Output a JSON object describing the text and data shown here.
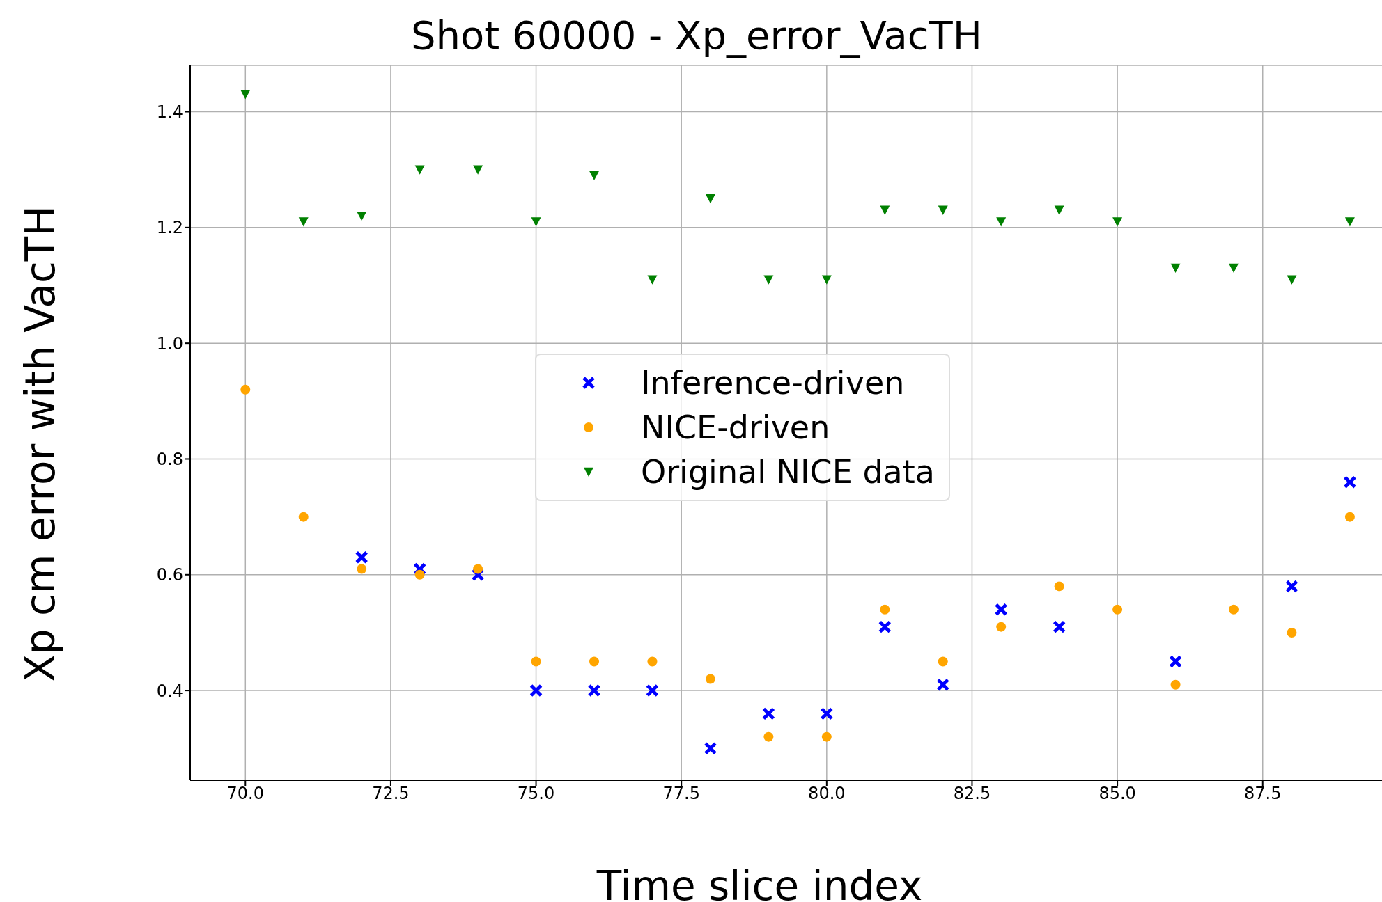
{
  "chart_data": {
    "type": "scatter",
    "title": "Shot 60000 - Xp_error_VacTH",
    "xlabel": "Time slice index",
    "ylabel": "Xp cm error with VacTH",
    "x": [
      70,
      71,
      72,
      73,
      74,
      75,
      76,
      77,
      78,
      79,
      80,
      81,
      82,
      83,
      84,
      85,
      86,
      87,
      88,
      89
    ],
    "series": [
      {
        "name": "Inference-driven",
        "color": "#0000ff",
        "marker": "cross",
        "values": [
          null,
          null,
          0.63,
          0.61,
          0.6,
          0.4,
          0.4,
          0.4,
          0.3,
          0.36,
          0.36,
          0.51,
          0.41,
          0.54,
          0.51,
          null,
          0.45,
          null,
          0.58,
          0.76
        ]
      },
      {
        "name": "NICE-driven",
        "color": "#ffa500",
        "marker": "circle",
        "values": [
          0.92,
          0.7,
          0.61,
          0.6,
          0.61,
          0.45,
          0.45,
          0.45,
          0.42,
          0.32,
          0.32,
          0.54,
          0.45,
          0.51,
          0.58,
          0.54,
          0.41,
          0.54,
          0.5,
          0.7
        ]
      },
      {
        "name": "Original NICE data",
        "color": "#008000",
        "marker": "triangle",
        "values": [
          1.43,
          1.21,
          1.22,
          1.3,
          1.3,
          1.21,
          1.29,
          1.11,
          1.25,
          1.11,
          1.11,
          1.23,
          1.23,
          1.21,
          1.23,
          1.21,
          1.13,
          1.13,
          1.11,
          1.21
        ]
      }
    ],
    "xlim": [
      69.05,
      89.6
    ],
    "ylim": [
      0.245,
      1.48
    ],
    "xticks": [
      {
        "value": 70,
        "label": "70.0"
      },
      {
        "value": 72.5,
        "label": "72.5"
      },
      {
        "value": 75,
        "label": "75.0"
      },
      {
        "value": 77.5,
        "label": "77.5"
      },
      {
        "value": 80,
        "label": "80.0"
      },
      {
        "value": 82.5,
        "label": "82.5"
      },
      {
        "value": 85,
        "label": "85.0"
      },
      {
        "value": 87.5,
        "label": "87.5"
      }
    ],
    "yticks": [
      {
        "value": 0.4,
        "label": "0.4"
      },
      {
        "value": 0.6,
        "label": "0.6"
      },
      {
        "value": 0.8,
        "label": "0.8"
      },
      {
        "value": 1.0,
        "label": "1.0"
      },
      {
        "value": 1.2,
        "label": "1.2"
      },
      {
        "value": 1.4,
        "label": "1.4"
      }
    ],
    "grid": true,
    "legend": "center"
  }
}
